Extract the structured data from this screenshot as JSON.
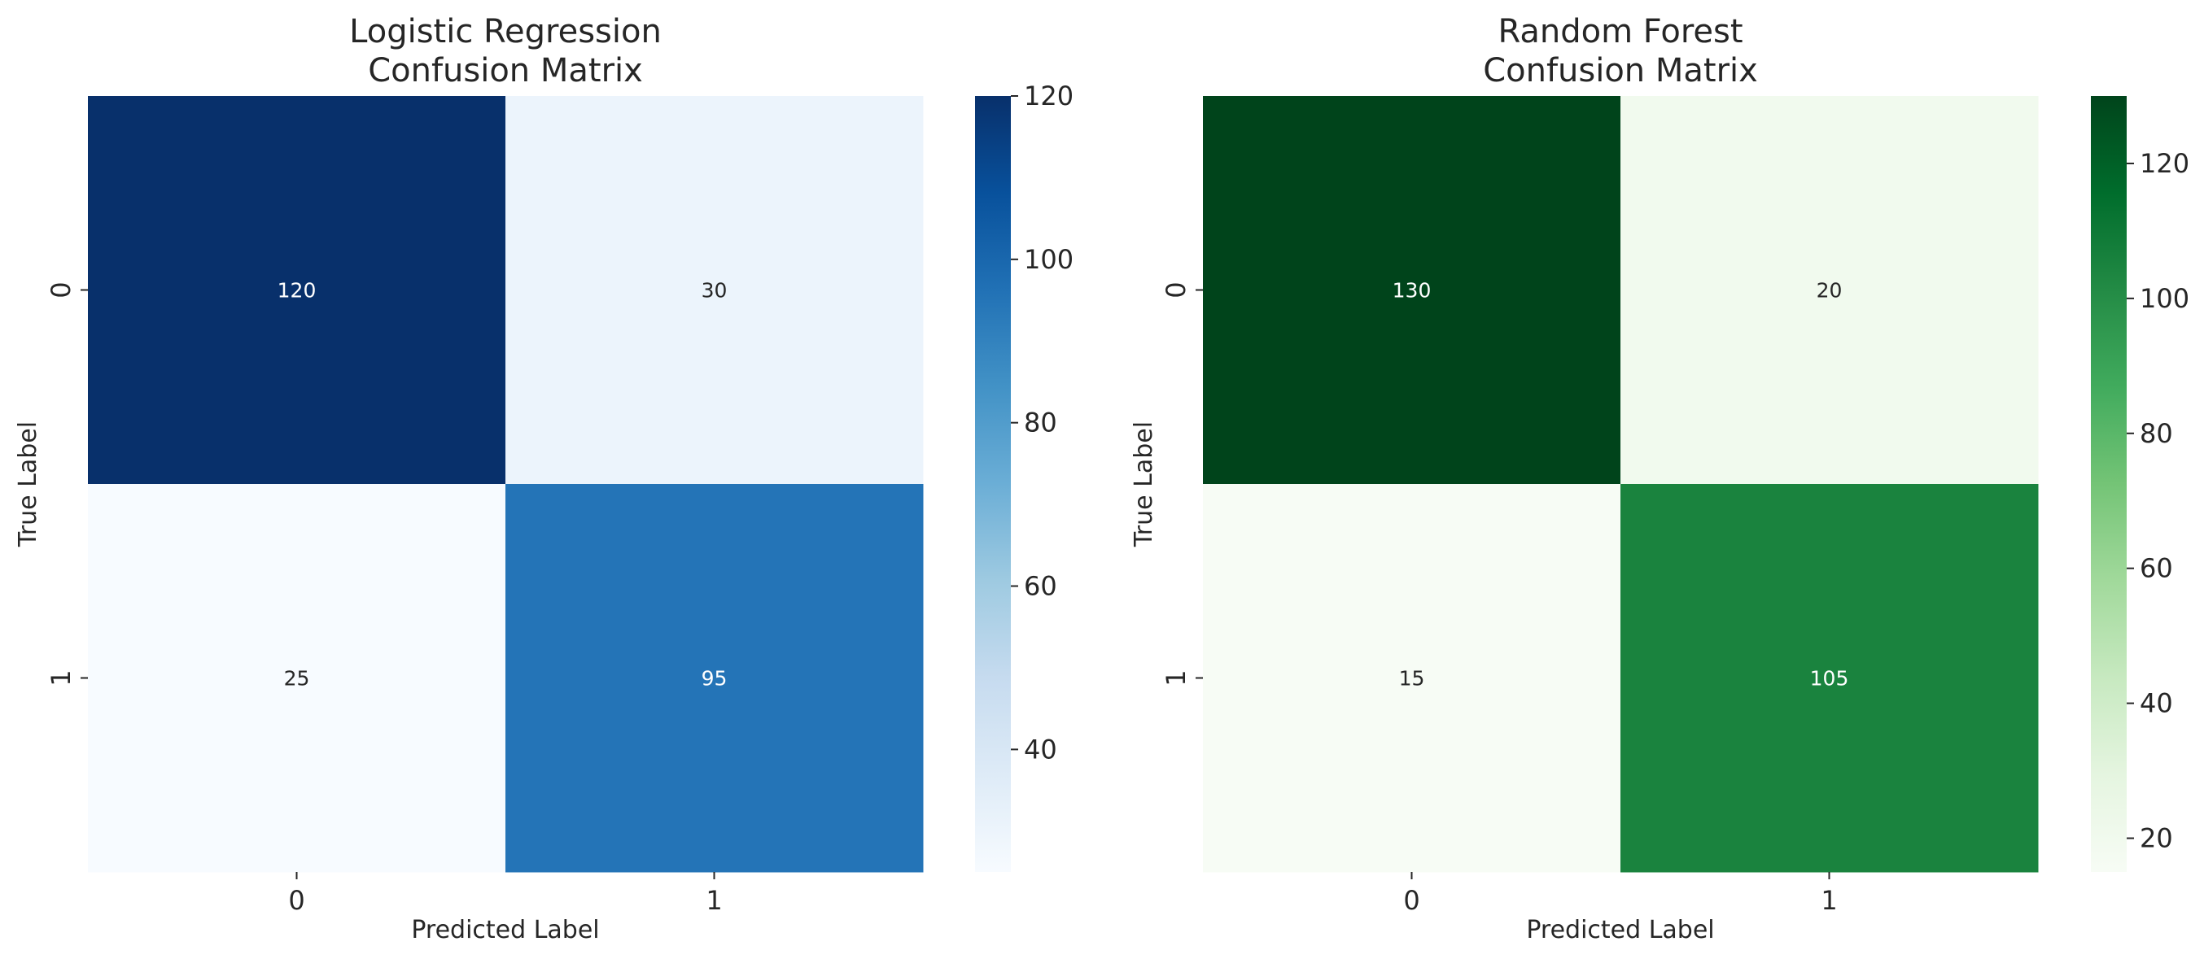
{
  "chart_data": [
    {
      "type": "heatmap",
      "title": "Logistic Regression\nConfusion Matrix",
      "xlabel": "Predicted Label",
      "ylabel": "True Label",
      "x_categories": [
        "0",
        "1"
      ],
      "y_categories": [
        "0",
        "1"
      ],
      "values": [
        [
          120,
          30
        ],
        [
          25,
          95
        ]
      ],
      "colormap": "Blues",
      "colorbar": {
        "min": 25,
        "max": 120,
        "ticks": [
          40,
          60,
          80,
          100,
          120
        ]
      },
      "grid": false
    },
    {
      "type": "heatmap",
      "title": "Random Forest\nConfusion Matrix",
      "xlabel": "Predicted Label",
      "ylabel": "True Label",
      "x_categories": [
        "0",
        "1"
      ],
      "y_categories": [
        "0",
        "1"
      ],
      "values": [
        [
          130,
          20
        ],
        [
          15,
          105
        ]
      ],
      "colormap": "Greens",
      "colorbar": {
        "min": 15,
        "max": 130,
        "ticks": [
          20,
          40,
          60,
          80,
          100,
          120
        ]
      },
      "grid": false
    }
  ]
}
